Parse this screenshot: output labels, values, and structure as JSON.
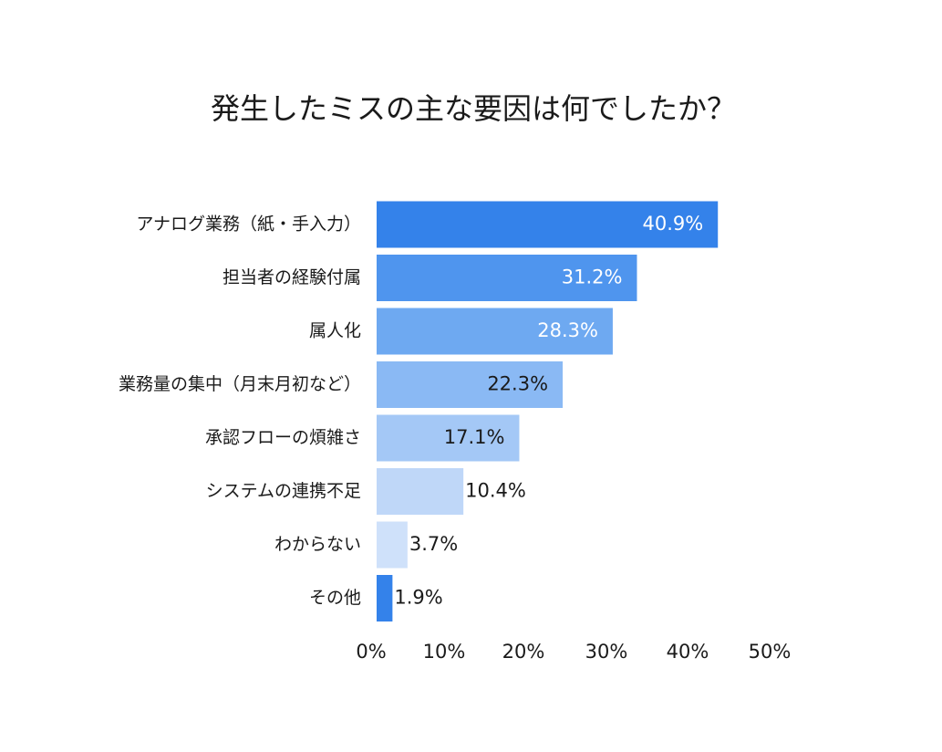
{
  "chart_data": {
    "type": "bar",
    "orientation": "horizontal",
    "title": "発生したミスの主な要因は何でしたか？",
    "categories": [
      "アナログ業務（紙・手入力）",
      "担当者の経験付属",
      "属人化",
      "業務量の集中（月末月初など）",
      "承認フローの煩雑さ",
      "システムの連携不足",
      "わからない",
      "その他"
    ],
    "values": [
      40.9,
      31.2,
      28.3,
      22.3,
      17.1,
      10.4,
      3.7,
      1.9
    ],
    "value_labels": [
      "40.9%",
      "31.2%",
      "28.3%",
      "22.3%",
      "17.1%",
      "10.4%",
      "3.7%",
      "1.9%"
    ],
    "bar_colors": [
      "#3482EA",
      "#4F95EE",
      "#6EA9F1",
      "#8AB9F4",
      "#A4C8F6",
      "#BFD7F8",
      "#CFE1FA",
      "#3482EA"
    ],
    "value_label_colors": [
      "#ffffff",
      "#ffffff",
      "#ffffff",
      "#1a1a1a",
      "#1a1a1a",
      "#1a1a1a",
      "#1a1a1a",
      "#1a1a1a"
    ],
    "xlim": [
      0,
      50
    ],
    "x_ticks": [
      0,
      10,
      20,
      30,
      40,
      50
    ],
    "x_tick_labels": [
      "0%",
      "10%",
      "20%",
      "30%",
      "40%",
      "50%"
    ],
    "grid": false,
    "legend": "none"
  }
}
